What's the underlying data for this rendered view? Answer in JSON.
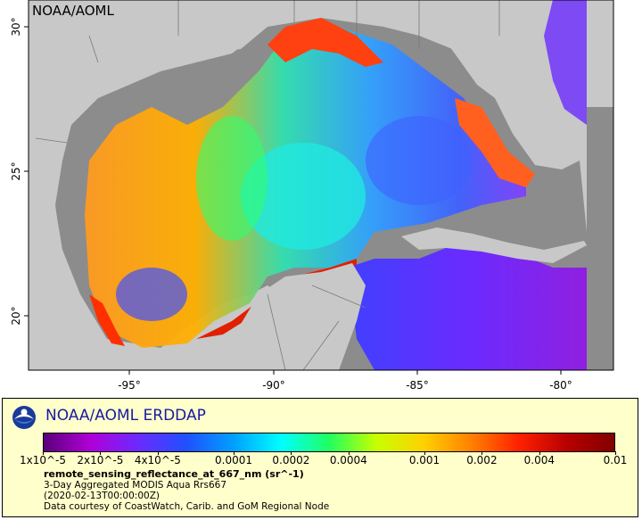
{
  "map": {
    "watermark": "NOAA/AOML",
    "lon_ticks": [
      "-95°",
      "-90°",
      "-85°",
      "-80°"
    ],
    "lat_ticks": [
      "30°",
      "25°",
      "20°"
    ],
    "colors": {
      "land": "#c8c8c8",
      "nodata": "#8c8c8c",
      "border": "#7a7a7a",
      "frame": "#000000"
    }
  },
  "legend": {
    "title": "NOAA/AOML ERDDAP",
    "colorbar_ticks": [
      "1x10^-5",
      "2x10^-5",
      "4x10^-5",
      "0.0001",
      "0.0002",
      "0.0004",
      "0.001",
      "0.002",
      "0.004",
      "0.01"
    ],
    "variable": "remote_sensing_reflectance_at_667_nm (sr^-1)",
    "dataset": "3-Day Aggregated MODIS Aqua Rrs667",
    "time": "(2020-02-13T00:00:00Z)",
    "credit": "Data courtesy of CoastWatch, Carib. and GoM Regional Node",
    "colormap": [
      "#5a007a",
      "#b000d8",
      "#6a2bff",
      "#2050ff",
      "#00a0ff",
      "#00ffff",
      "#20ff60",
      "#c8ff00",
      "#ffd000",
      "#ff8000",
      "#ff2000",
      "#b80000",
      "#800000"
    ]
  }
}
